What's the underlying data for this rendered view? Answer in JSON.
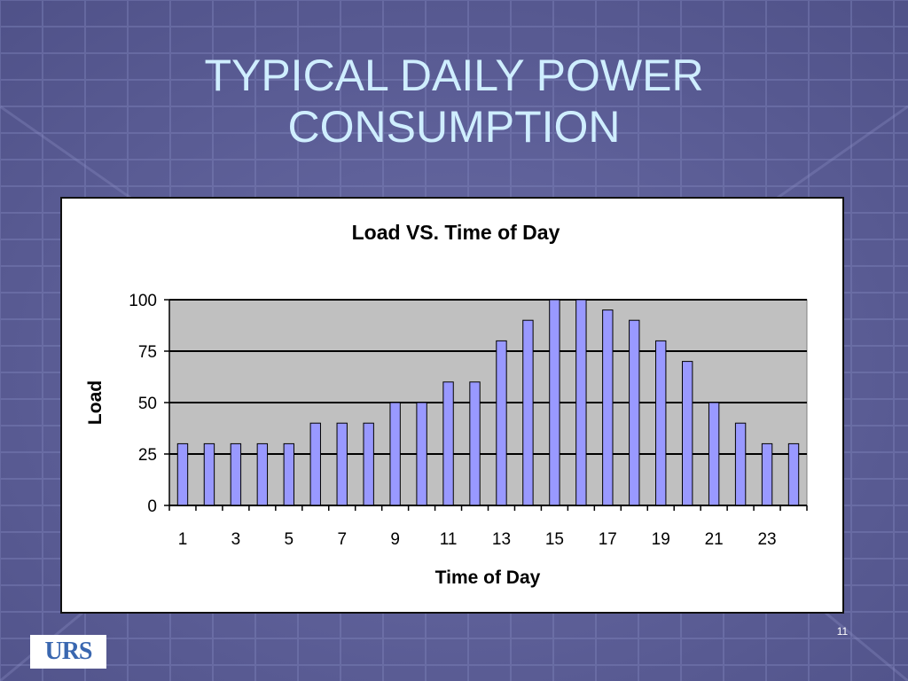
{
  "slide": {
    "title_line1": "TYPICAL DAILY POWER",
    "title_line2": "CONSUMPTION",
    "page_number": "11",
    "logo_text": "URS"
  },
  "colors": {
    "background": "#5b5d95",
    "title": "#cfeeff",
    "plot_area": "#c0c0c0",
    "bar_fill": "#9999ff",
    "bar_stroke": "#000000"
  },
  "chart_data": {
    "type": "bar",
    "title": "Load VS. Time of Day",
    "xlabel": "Time of Day",
    "ylabel": "Load",
    "x": [
      1,
      2,
      3,
      4,
      5,
      6,
      7,
      8,
      9,
      10,
      11,
      12,
      13,
      14,
      15,
      16,
      17,
      18,
      19,
      20,
      21,
      22,
      23,
      24
    ],
    "values": [
      30,
      30,
      30,
      30,
      30,
      40,
      40,
      40,
      50,
      50,
      60,
      60,
      80,
      90,
      100,
      100,
      95,
      90,
      80,
      70,
      50,
      40,
      30,
      30
    ],
    "x_tick_labels": [
      "1",
      "3",
      "5",
      "7",
      "9",
      "11",
      "13",
      "15",
      "17",
      "19",
      "21",
      "23"
    ],
    "y_ticks": [
      0,
      25,
      50,
      75,
      100
    ],
    "ylim": [
      0,
      100
    ],
    "grid": true,
    "legend": "none"
  }
}
